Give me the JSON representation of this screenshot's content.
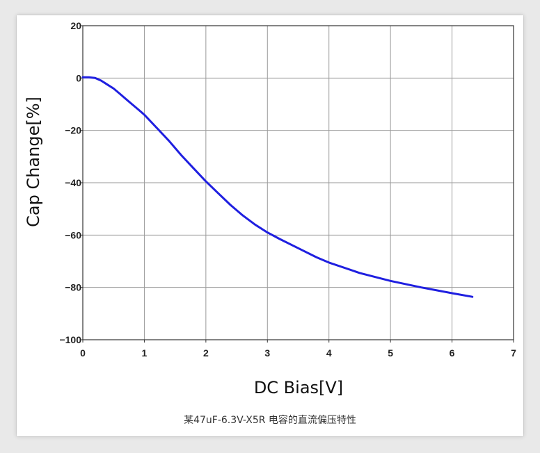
{
  "caption": "某47uF-6.3V-X5R 电容的直流偏压特性",
  "chart_data": {
    "type": "line",
    "title": "",
    "xlabel": "DC Bias[V]",
    "ylabel": "Cap Change[%]",
    "xlim": [
      0,
      7
    ],
    "ylim": [
      -100,
      20
    ],
    "xticks": [
      0,
      1,
      2,
      3,
      4,
      5,
      6,
      7
    ],
    "yticks": [
      20,
      0,
      -20,
      -40,
      -60,
      -80,
      -100
    ],
    "xtick_labels": [
      "0",
      "1",
      "2",
      "3",
      "4",
      "5",
      "6",
      "7"
    ],
    "ytick_labels": [
      "20",
      "0",
      "−20",
      "−40",
      "−60",
      "−80",
      "−100"
    ],
    "grid": true,
    "series": [
      {
        "color": "#1f1fe0",
        "x": [
          0,
          0.1,
          0.2,
          0.3,
          0.4,
          0.5,
          0.6,
          0.7,
          0.8,
          0.9,
          1.0,
          1.2,
          1.4,
          1.6,
          1.8,
          2.0,
          2.2,
          2.4,
          2.6,
          2.8,
          3.0,
          3.2,
          3.5,
          3.8,
          4.0,
          4.5,
          5.0,
          5.5,
          6.0,
          6.33
        ],
        "y": [
          0.3,
          0.3,
          0,
          -1,
          -2.5,
          -4,
          -6,
          -8,
          -10,
          -12,
          -14,
          -19,
          -24,
          -29.5,
          -34.5,
          -39.5,
          -44,
          -48.5,
          -52.5,
          -56,
          -59,
          -61.5,
          -65,
          -68.5,
          -70.5,
          -74.5,
          -77.5,
          -80,
          -82.2,
          -83.6
        ]
      }
    ]
  }
}
